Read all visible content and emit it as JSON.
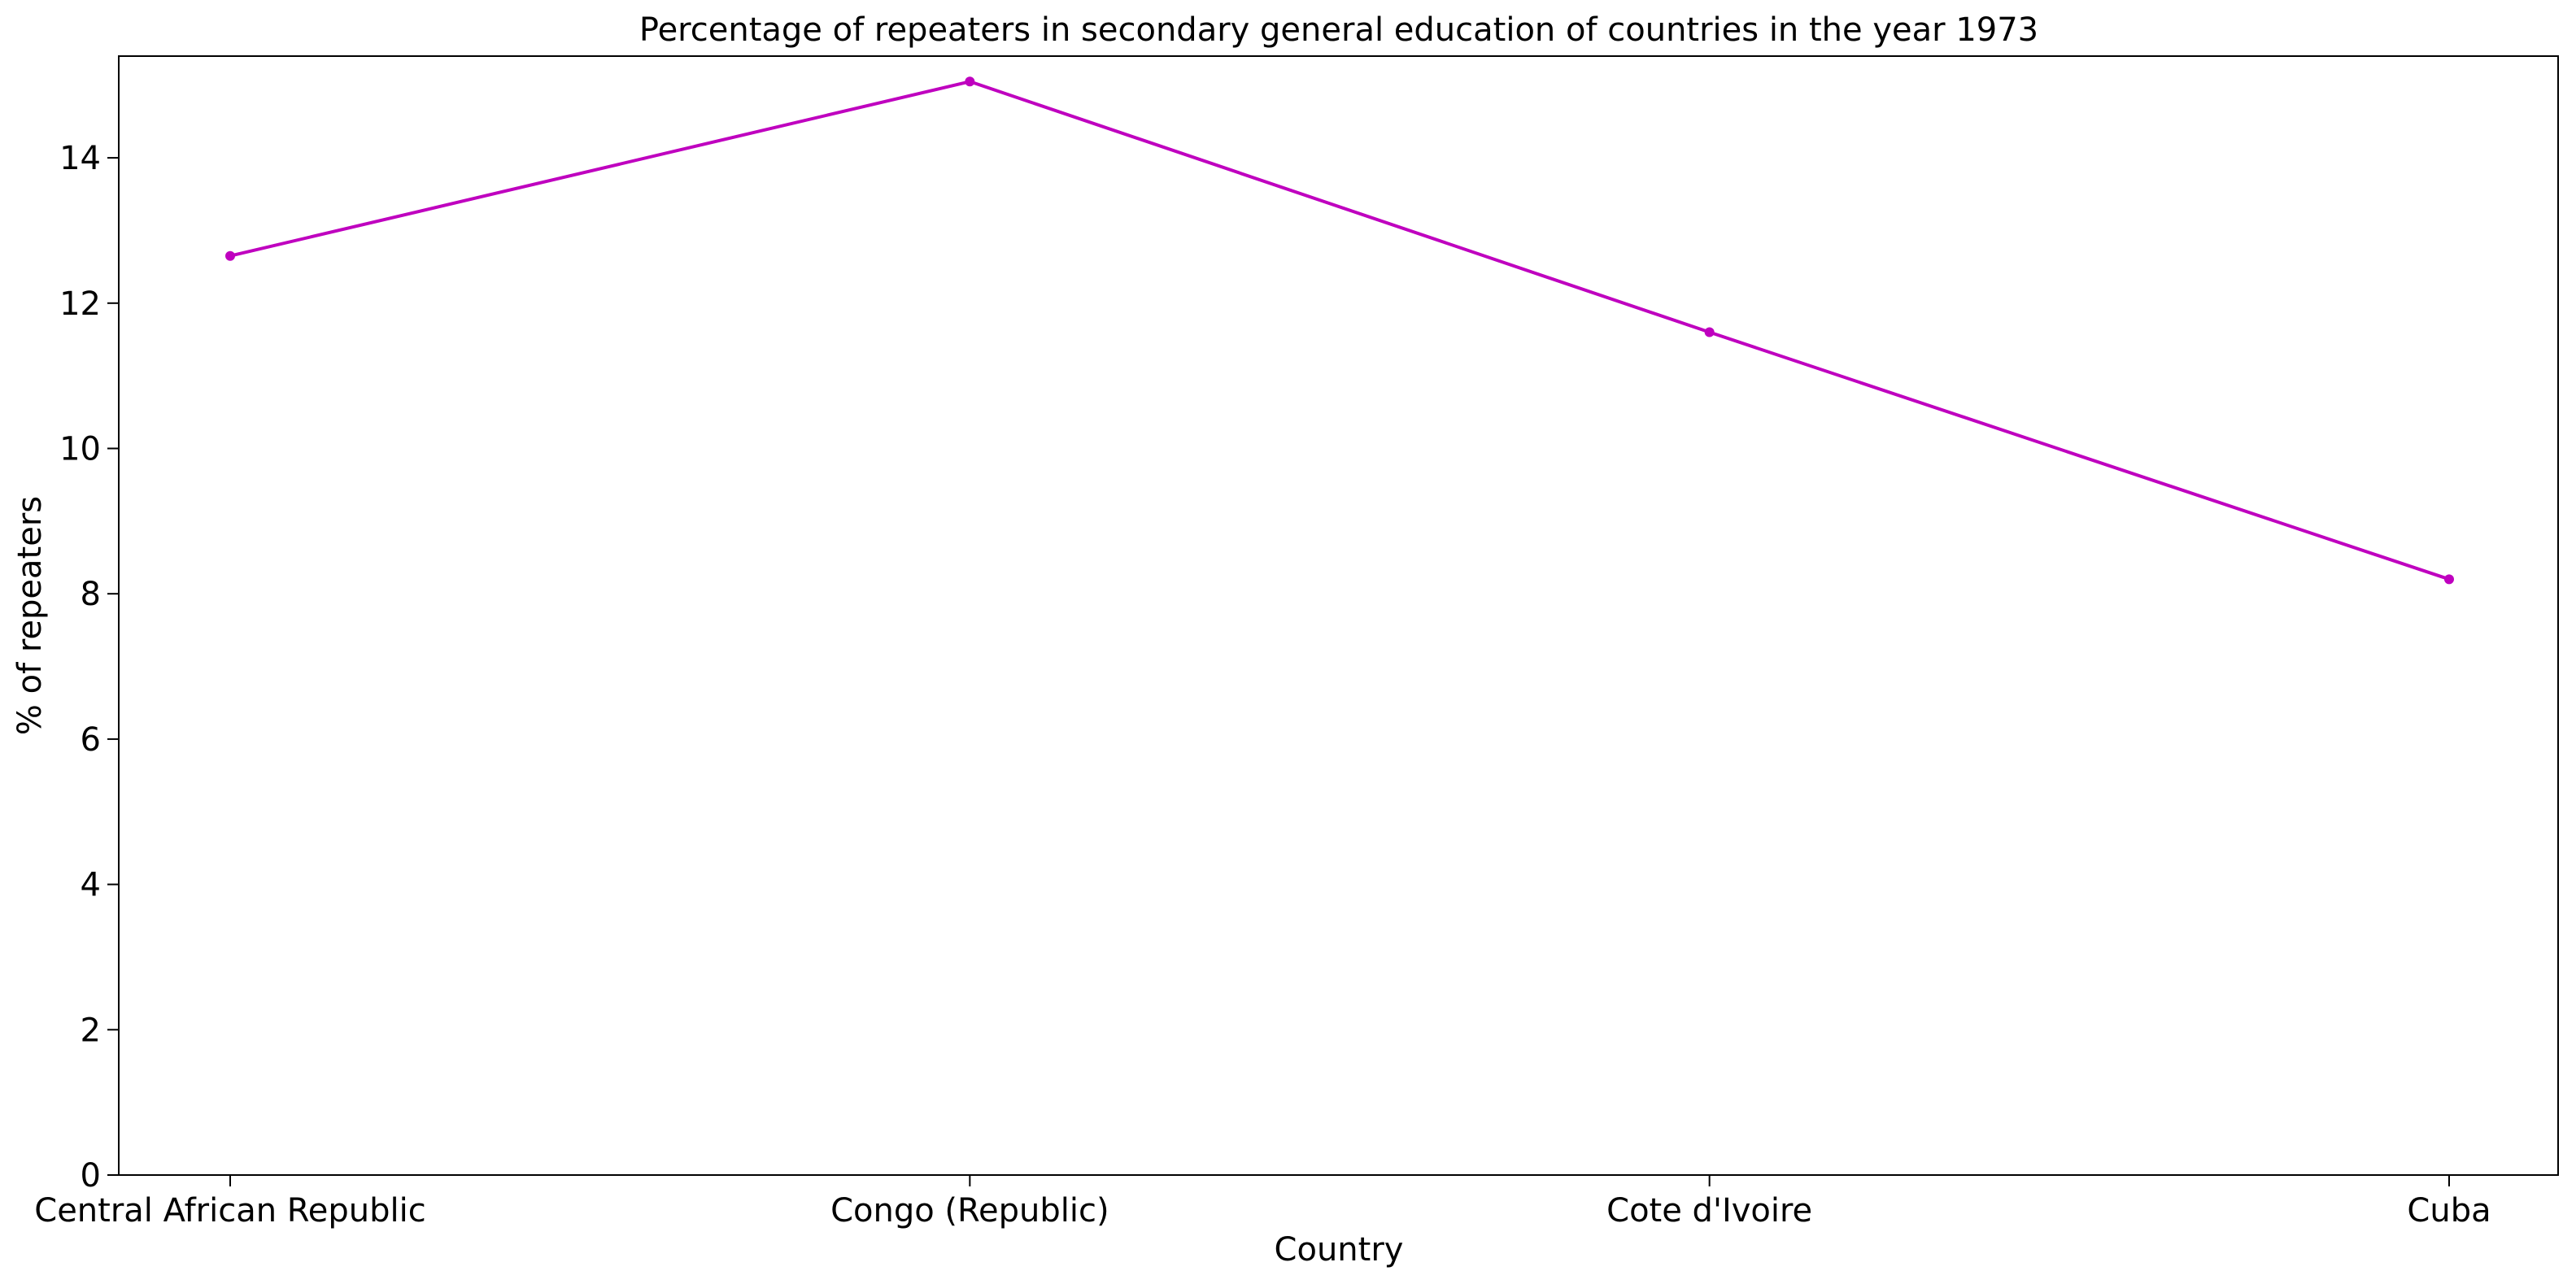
{
  "chart_data": {
    "type": "line",
    "title": "Percentage of repeaters in secondary general education of countries in the year 1973",
    "xlabel": "Country",
    "ylabel": "% of repeaters",
    "categories": [
      "Central African Republic",
      "Congo (Republic)",
      "Cote d'Ivoire",
      "Cuba"
    ],
    "series": [
      {
        "values": [
          12.65,
          15.05,
          11.6,
          8.2
        ],
        "color": "#bf00bf"
      }
    ],
    "ylim": [
      0,
      15.4
    ],
    "yticks": [
      0,
      2,
      4,
      6,
      8,
      10,
      12,
      14
    ],
    "grid": false,
    "legend": "none"
  }
}
